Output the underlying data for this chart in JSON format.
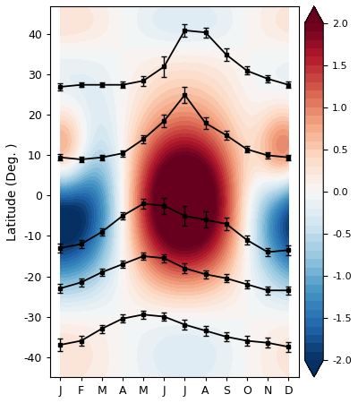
{
  "months": [
    1,
    2,
    3,
    4,
    5,
    6,
    7,
    8,
    9,
    10,
    11,
    12
  ],
  "month_labels": [
    "J",
    "F",
    "M",
    "A",
    "M",
    "J",
    "J",
    "A",
    "S",
    "O",
    "N",
    "D"
  ],
  "ylabel": "Latitude (Deg. )",
  "ylim": [
    -45,
    47
  ],
  "yticks": [
    -40,
    -30,
    -20,
    -10,
    0,
    10,
    20,
    30,
    40
  ],
  "clim": [
    -2.0,
    2.0
  ],
  "line1_y": [
    27.0,
    27.5,
    27.5,
    27.5,
    28.5,
    32.0,
    41.0,
    40.5,
    35.0,
    31.0,
    29.0,
    27.5
  ],
  "line1_err": [
    0.8,
    0.6,
    0.6,
    0.8,
    1.2,
    2.5,
    1.5,
    1.2,
    1.5,
    1.0,
    0.8,
    0.8
  ],
  "line2_y": [
    9.5,
    9.0,
    9.5,
    10.5,
    14.0,
    18.5,
    25.0,
    18.0,
    15.0,
    11.5,
    10.0,
    9.5
  ],
  "line2_err": [
    0.8,
    0.7,
    0.7,
    0.8,
    1.0,
    1.5,
    2.0,
    1.5,
    1.2,
    0.8,
    0.7,
    0.7
  ],
  "line3_y": [
    -13.0,
    -12.0,
    -9.0,
    -5.0,
    -2.0,
    -2.5,
    -5.0,
    -6.0,
    -7.0,
    -11.0,
    -14.0,
    -13.5
  ],
  "line3_err": [
    1.2,
    1.0,
    0.8,
    0.8,
    1.2,
    2.0,
    2.5,
    2.0,
    1.5,
    1.2,
    1.0,
    1.2
  ],
  "line4_y": [
    -23.0,
    -21.5,
    -19.0,
    -17.0,
    -15.0,
    -15.5,
    -18.0,
    -19.5,
    -20.5,
    -22.0,
    -23.5,
    -23.5
  ],
  "line4_err": [
    1.2,
    1.0,
    0.8,
    0.8,
    0.8,
    1.0,
    1.2,
    1.0,
    1.0,
    1.0,
    1.0,
    1.0
  ],
  "line5_y": [
    -37.0,
    -36.0,
    -33.0,
    -30.5,
    -29.5,
    -30.0,
    -32.0,
    -33.5,
    -35.0,
    -36.0,
    -36.5,
    -37.5
  ],
  "line5_err": [
    1.5,
    1.2,
    1.0,
    1.0,
    1.0,
    1.0,
    1.2,
    1.2,
    1.2,
    1.2,
    1.2,
    1.2
  ],
  "bg_colors": [
    "#08306b",
    "#2171b5",
    "#6baed6",
    "#c6dbef",
    "#f7f7f7",
    "#fddbc7",
    "#fc8d59",
    "#d73027",
    "#a50026"
  ]
}
